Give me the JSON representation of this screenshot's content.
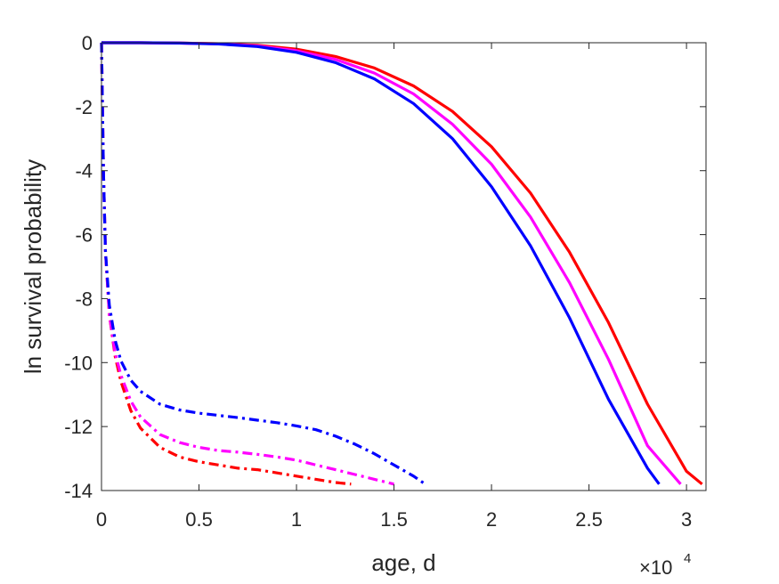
{
  "chart_data": {
    "type": "line",
    "title": "",
    "xlabel": "age, d",
    "ylabel": "ln survival probability",
    "x_multiplier": {
      "base": "×10",
      "exponent": "4"
    },
    "xlim": [
      0,
      31000
    ],
    "ylim": [
      -14,
      0
    ],
    "grid": false,
    "xticks": [
      0,
      5000,
      10000,
      15000,
      20000,
      25000,
      30000
    ],
    "xtick_labels": [
      "0",
      "0.5",
      "1",
      "1.5",
      "2",
      "2.5",
      "3"
    ],
    "yticks": [
      0,
      -2,
      -4,
      -6,
      -8,
      -10,
      -12,
      -14
    ],
    "ytick_labels": [
      "0",
      "-2",
      "-4",
      "-6",
      "-8",
      "-10",
      "-12",
      "-14"
    ],
    "series": [
      {
        "color": "#ff0000",
        "dash": "solid",
        "x": [
          0,
          2000,
          4000,
          6000,
          8000,
          10000,
          12000,
          14000,
          16000,
          18000,
          20000,
          22000,
          24000,
          26000,
          28000,
          30000,
          30800
        ],
        "y": [
          0,
          0,
          -0.01,
          -0.03,
          -0.08,
          -0.2,
          -0.43,
          -0.79,
          -1.35,
          -2.15,
          -3.25,
          -4.7,
          -6.55,
          -8.75,
          -11.3,
          -13.4,
          -13.8
        ]
      },
      {
        "color": "#ff00ff",
        "dash": "solid",
        "x": [
          0,
          2000,
          4000,
          6000,
          8000,
          10000,
          12000,
          14000,
          16000,
          18000,
          20000,
          22000,
          24000,
          26000,
          28000,
          29700
        ],
        "y": [
          0,
          0,
          -0.01,
          -0.03,
          -0.1,
          -0.25,
          -0.52,
          -0.95,
          -1.6,
          -2.55,
          -3.8,
          -5.45,
          -7.5,
          -9.9,
          -12.6,
          -13.8
        ]
      },
      {
        "color": "#0000ff",
        "dash": "solid",
        "x": [
          0,
          2000,
          4000,
          6000,
          8000,
          10000,
          12000,
          14000,
          16000,
          18000,
          20000,
          22000,
          24000,
          26000,
          28000,
          28600
        ],
        "y": [
          0,
          0,
          -0.01,
          -0.04,
          -0.12,
          -0.3,
          -0.62,
          -1.13,
          -1.9,
          -3.0,
          -4.5,
          -6.35,
          -8.6,
          -11.15,
          -13.3,
          -13.8
        ]
      },
      {
        "color": "#ff0000",
        "dash": "dashdot",
        "x": [
          0,
          50,
          100,
          200,
          400,
          700,
          1000,
          1500,
          2000,
          3000,
          4000,
          5000,
          6000,
          7000,
          8000,
          9000,
          10000,
          11000,
          12000,
          12800
        ],
        "y": [
          0,
          -2.0,
          -4.0,
          -6.5,
          -8.5,
          -9.8,
          -10.6,
          -11.5,
          -12.05,
          -12.65,
          -12.95,
          -13.1,
          -13.2,
          -13.3,
          -13.35,
          -13.45,
          -13.55,
          -13.65,
          -13.75,
          -13.8
        ]
      },
      {
        "color": "#ff00ff",
        "dash": "dashdot",
        "x": [
          0,
          50,
          100,
          200,
          400,
          700,
          1000,
          1500,
          2000,
          3000,
          4000,
          5000,
          6000,
          7000,
          8000,
          9000,
          10000,
          11000,
          12000,
          13000,
          14000,
          15000
        ],
        "y": [
          0,
          -2.0,
          -4.0,
          -6.5,
          -8.5,
          -9.7,
          -10.4,
          -11.2,
          -11.7,
          -12.25,
          -12.5,
          -12.65,
          -12.75,
          -12.8,
          -12.87,
          -12.95,
          -13.05,
          -13.2,
          -13.35,
          -13.5,
          -13.65,
          -13.8
        ]
      },
      {
        "color": "#0000ff",
        "dash": "dashdot",
        "x": [
          0,
          50,
          100,
          200,
          400,
          700,
          1000,
          1500,
          2000,
          3000,
          4000,
          5000,
          6000,
          7000,
          8000,
          9000,
          10000,
          11000,
          12000,
          13000,
          14000,
          15000,
          16000,
          16600
        ],
        "y": [
          0,
          -2.0,
          -4.0,
          -6.5,
          -8.2,
          -9.3,
          -9.95,
          -10.55,
          -10.9,
          -11.3,
          -11.48,
          -11.58,
          -11.65,
          -11.72,
          -11.8,
          -11.88,
          -11.98,
          -12.1,
          -12.3,
          -12.55,
          -12.85,
          -13.2,
          -13.55,
          -13.8
        ]
      }
    ]
  }
}
